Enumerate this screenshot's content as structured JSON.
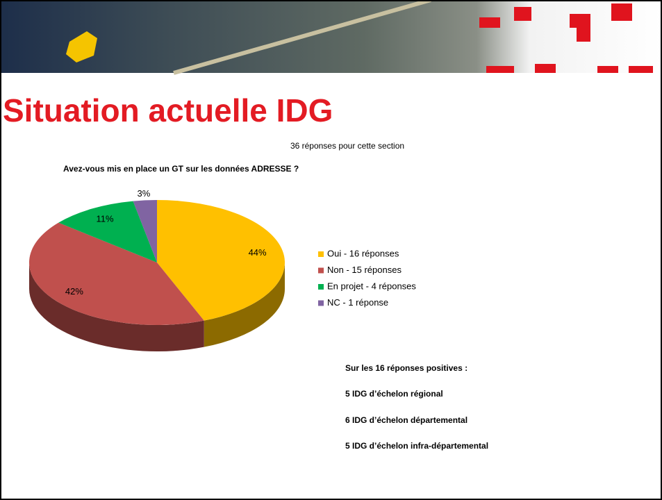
{
  "slide": {
    "title": "Situation actuelle IDG",
    "notes": [
      "Sur les 16 réponses positives :",
      "5 IDG d’échelon régional",
      "6 IDG d’échelon départemental",
      "5 IDG d’échelon infra-départemental"
    ]
  },
  "chart_data": {
    "type": "pie",
    "subtitle": "36 réponses pour cette section",
    "title": "Avez-vous mis en place un GT sur les données ADRESSE ?",
    "categories": [
      "Oui - 16 réponses",
      "Non - 15 réponses",
      "En projet - 4 réponses",
      "NC - 1 réponse"
    ],
    "values": [
      44,
      42,
      11,
      3
    ],
    "value_labels": [
      "44%",
      "42%",
      "11%",
      "3%"
    ],
    "colors": [
      "#FFC000",
      "#C0504D",
      "#00B050",
      "#8064A2"
    ],
    "legend": "right"
  }
}
